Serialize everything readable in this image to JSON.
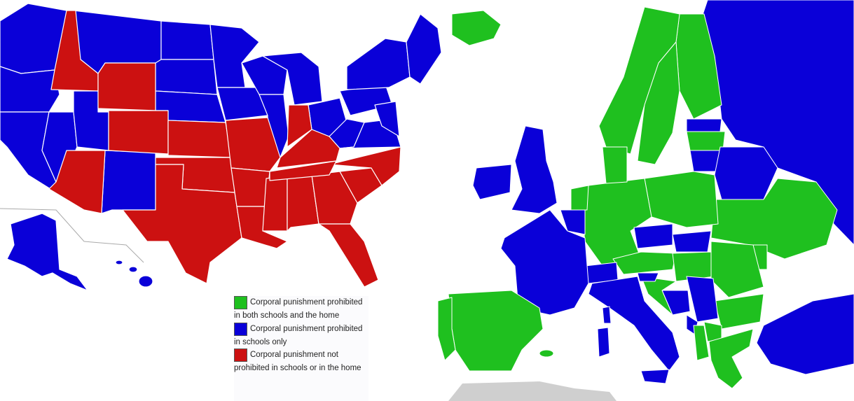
{
  "colors": {
    "both": "#1fc01f",
    "schools_only": "#0a00d8",
    "not_prohibited": "#cc1111",
    "non_member": "#cfcfcf",
    "border_line": "#aaaaaa"
  },
  "legend": {
    "items": [
      {
        "key": "both",
        "label": "Corporal punishment prohibited in both schools and the home"
      },
      {
        "key": "schools_only",
        "label": "Corporal punishment prohibited in schools only"
      },
      {
        "key": "not_prohibited",
        "label": "Corporal punishment not prohibited in schools or in the home"
      }
    ]
  },
  "us_states": {
    "not_prohibited": [
      "Idaho",
      "Wyoming",
      "Colorado",
      "Kansas",
      "Oklahoma",
      "Texas",
      "Missouri",
      "Arkansas",
      "Louisiana",
      "Mississippi",
      "Alabama",
      "Georgia",
      "Florida",
      "Tennessee",
      "Kentucky",
      "Indiana",
      "North Carolina",
      "South Carolina",
      "Arizona"
    ],
    "schools_only": [
      "Washington",
      "Oregon",
      "California",
      "Nevada",
      "Utah",
      "Montana",
      "North Dakota",
      "South Dakota",
      "Nebraska",
      "Minnesota",
      "Iowa",
      "Wisconsin",
      "Illinois",
      "Michigan",
      "Ohio",
      "Pennsylvania",
      "New York",
      "West Virginia",
      "Virginia",
      "Maryland",
      "New Jersey",
      "New England",
      "New Mexico",
      "Alaska",
      "Hawaii"
    ]
  },
  "europe_countries": {
    "both": [
      "Iceland",
      "Norway",
      "Sweden",
      "Finland",
      "Denmark",
      "Germany",
      "Netherlands",
      "Poland",
      "Ukraine",
      "Austria",
      "Hungary",
      "Romania",
      "Bulgaria",
      "Greece",
      "Spain",
      "Portugal",
      "Croatia",
      "Latvia",
      "Luxembourg",
      "Moldova",
      "Albania",
      "North Macedonia"
    ],
    "schools_only": [
      "United Kingdom",
      "Ireland",
      "France",
      "Belgium",
      "Switzerland",
      "Italy",
      "Czech Republic",
      "Slovakia",
      "Lithuania",
      "Estonia",
      "Belarus",
      "Russia",
      "Turkey",
      "Serbia",
      "Bosnia and Herzegovina",
      "Slovenia",
      "Montenegro",
      "Sardinia",
      "Corsica"
    ]
  }
}
